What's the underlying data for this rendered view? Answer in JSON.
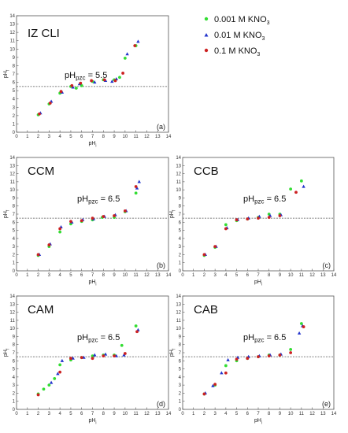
{
  "figure": {
    "legend": [
      {
        "label": "0.001 M KNO",
        "subscript": "3",
        "color": "#33dd33",
        "marker": "circle"
      },
      {
        "label": "0.01 M KNO",
        "subscript": "3",
        "color": "#2233cc",
        "marker": "triangle"
      },
      {
        "label": "0.1 M KNO",
        "subscript": "3",
        "color": "#cc2222",
        "marker": "circle"
      }
    ]
  },
  "chart_data": [
    {
      "type": "scatter",
      "title": "IZ CLI",
      "panel_label": "(a)",
      "xlabel": "pHi",
      "ylabel": "pHf",
      "pzc_label": "pHpzc = 5.5",
      "pzc": 5.5,
      "xlim": [
        0,
        14
      ],
      "ylim": [
        0,
        14
      ],
      "xticks": [
        0,
        1,
        2,
        3,
        4,
        5,
        6,
        7,
        8,
        9,
        10,
        11,
        12,
        13,
        14
      ],
      "yticks": [
        0,
        1,
        2,
        3,
        4,
        5,
        6,
        7,
        8,
        9,
        10,
        11,
        12,
        13,
        14
      ],
      "series": [
        {
          "name": "0.001 M KNO3",
          "points": [
            [
              2.0,
              2.1
            ],
            [
              3.0,
              3.4
            ],
            [
              4.0,
              4.7
            ],
            [
              5.0,
              5.5
            ],
            [
              5.5,
              5.3
            ],
            [
              6.0,
              5.6
            ],
            [
              7.0,
              6.1
            ],
            [
              8.0,
              6.3
            ],
            [
              9.0,
              6.3
            ],
            [
              9.5,
              6.6
            ],
            [
              10.0,
              8.9
            ],
            [
              11.0,
              10.4
            ]
          ]
        },
        {
          "name": "0.01 M KNO3",
          "points": [
            [
              2.2,
              2.3
            ],
            [
              3.2,
              3.7
            ],
            [
              4.2,
              4.8
            ],
            [
              5.2,
              5.4
            ],
            [
              5.8,
              5.8
            ],
            [
              7.2,
              6.0
            ],
            [
              8.2,
              6.2
            ],
            [
              8.8,
              6.1
            ],
            [
              9.2,
              6.4
            ],
            [
              10.2,
              9.4
            ],
            [
              11.2,
              10.9
            ]
          ]
        },
        {
          "name": "0.1 M KNO3",
          "points": [
            [
              2.1,
              2.2
            ],
            [
              3.1,
              3.5
            ],
            [
              4.1,
              4.9
            ],
            [
              5.1,
              5.6
            ],
            [
              5.9,
              5.9
            ],
            [
              6.9,
              6.2
            ],
            [
              8.1,
              6.3
            ],
            [
              9.1,
              6.2
            ],
            [
              9.8,
              7.1
            ],
            [
              10.9,
              10.4
            ]
          ]
        }
      ]
    },
    {
      "type": "scatter",
      "title": "CCM",
      "panel_label": "(b)",
      "xlabel": "pHi",
      "ylabel": "pHf",
      "pzc_label": "pHpzc = 6.5",
      "pzc": 6.5,
      "xlim": [
        0,
        14
      ],
      "ylim": [
        0,
        14
      ],
      "xticks": [
        0,
        1,
        2,
        3,
        4,
        5,
        6,
        7,
        8,
        9,
        10,
        11,
        12,
        13,
        14
      ],
      "yticks": [
        0,
        1,
        2,
        3,
        4,
        5,
        6,
        7,
        8,
        9,
        10,
        11,
        12,
        13,
        14
      ],
      "series": [
        {
          "name": "0.001 M KNO3",
          "points": [
            [
              2.0,
              1.9
            ],
            [
              3.0,
              3.0
            ],
            [
              4.0,
              4.8
            ],
            [
              5.0,
              5.8
            ],
            [
              6.0,
              6.1
            ],
            [
              7.0,
              6.3
            ],
            [
              7.9,
              6.6
            ],
            [
              9.0,
              6.6
            ],
            [
              10.0,
              7.3
            ],
            [
              11.0,
              9.6
            ]
          ]
        },
        {
          "name": "0.01 M KNO3",
          "points": [
            [
              2.1,
              2.0
            ],
            [
              3.1,
              3.3
            ],
            [
              4.1,
              5.4
            ],
            [
              5.1,
              6.0
            ],
            [
              6.1,
              6.3
            ],
            [
              7.1,
              6.4
            ],
            [
              8.1,
              6.7
            ],
            [
              9.1,
              6.9
            ],
            [
              10.1,
              7.4
            ],
            [
              11.1,
              10.2
            ],
            [
              11.3,
              11.0
            ]
          ]
        },
        {
          "name": "0.1 M KNO3",
          "points": [
            [
              2.0,
              2.0
            ],
            [
              3.0,
              3.2
            ],
            [
              4.0,
              5.2
            ],
            [
              5.0,
              6.1
            ],
            [
              6.0,
              6.2
            ],
            [
              7.0,
              6.5
            ],
            [
              8.0,
              6.7
            ],
            [
              9.0,
              6.8
            ],
            [
              10.0,
              7.4
            ],
            [
              11.0,
              10.4
            ]
          ]
        }
      ]
    },
    {
      "type": "scatter",
      "title": "CCB",
      "panel_label": "(c)",
      "xlabel": "pHi",
      "ylabel": "pHf",
      "pzc_label": "pHpzc = 6.5",
      "pzc": 6.5,
      "xlim": [
        0,
        14
      ],
      "ylim": [
        0,
        14
      ],
      "xticks": [
        0,
        1,
        2,
        3,
        4,
        5,
        6,
        7,
        8,
        9,
        10,
        11,
        12,
        13,
        14
      ],
      "yticks": [
        0,
        1,
        2,
        3,
        4,
        5,
        6,
        7,
        8,
        9,
        10,
        11,
        12,
        13,
        14
      ],
      "series": [
        {
          "name": "0.001 M KNO3",
          "points": [
            [
              2.0,
              1.9
            ],
            [
              3.0,
              2.9
            ],
            [
              4.0,
              5.7
            ],
            [
              5.0,
              6.2
            ],
            [
              6.0,
              6.4
            ],
            [
              7.0,
              6.6
            ],
            [
              8.0,
              7.0
            ],
            [
              9.0,
              7.0
            ],
            [
              10.0,
              10.1
            ],
            [
              11.0,
              11.1
            ]
          ]
        },
        {
          "name": "0.01 M KNO3",
          "points": [
            [
              2.1,
              2.0
            ],
            [
              3.1,
              3.0
            ],
            [
              4.1,
              5.3
            ],
            [
              5.1,
              6.3
            ],
            [
              6.1,
              6.5
            ],
            [
              7.1,
              6.7
            ],
            [
              8.1,
              6.8
            ],
            [
              9.1,
              6.9
            ],
            [
              11.2,
              10.4
            ]
          ]
        },
        {
          "name": "0.1 M KNO3",
          "points": [
            [
              2.0,
              2.0
            ],
            [
              3.0,
              3.0
            ],
            [
              4.0,
              5.2
            ],
            [
              5.0,
              6.3
            ],
            [
              6.0,
              6.4
            ],
            [
              7.0,
              6.5
            ],
            [
              8.0,
              6.6
            ],
            [
              9.0,
              6.8
            ],
            [
              10.5,
              9.7
            ]
          ]
        }
      ]
    },
    {
      "type": "scatter",
      "title": "CAM",
      "panel_label": "(d)",
      "xlabel": "pHi",
      "ylabel": "pHf",
      "pzc_label": "pHpzc = 6.5",
      "pzc": 6.5,
      "xlim": [
        0,
        14
      ],
      "ylim": [
        0,
        14
      ],
      "xticks": [
        0,
        1,
        2,
        3,
        4,
        5,
        6,
        7,
        8,
        9,
        10,
        11,
        12,
        13,
        14
      ],
      "yticks": [
        0,
        1,
        2,
        3,
        4,
        5,
        6,
        7,
        8,
        9,
        10,
        11,
        12,
        13,
        14
      ],
      "series": [
        {
          "name": "0.001 M KNO3",
          "points": [
            [
              2.0,
              1.9
            ],
            [
              2.5,
              2.5
            ],
            [
              3.0,
              3.0
            ],
            [
              3.5,
              3.8
            ],
            [
              4.0,
              5.5
            ],
            [
              5.0,
              6.1
            ],
            [
              6.0,
              6.4
            ],
            [
              7.0,
              6.6
            ],
            [
              8.0,
              6.7
            ],
            [
              9.0,
              6.7
            ],
            [
              9.7,
              7.9
            ],
            [
              11.0,
              10.3
            ]
          ]
        },
        {
          "name": "0.01 M KNO3",
          "points": [
            [
              3.2,
              3.3
            ],
            [
              3.8,
              4.4
            ],
            [
              4.2,
              6.0
            ],
            [
              5.2,
              6.3
            ],
            [
              6.2,
              6.4
            ],
            [
              7.2,
              6.7
            ],
            [
              8.2,
              6.8
            ],
            [
              9.2,
              6.6
            ],
            [
              9.9,
              6.7
            ],
            [
              11.2,
              9.8
            ]
          ]
        },
        {
          "name": "0.1 M KNO3",
          "points": [
            [
              2.0,
              1.8
            ],
            [
              4.0,
              4.6
            ],
            [
              5.0,
              6.3
            ],
            [
              6.0,
              6.4
            ],
            [
              7.0,
              6.3
            ],
            [
              8.0,
              6.6
            ],
            [
              9.0,
              6.6
            ],
            [
              10.0,
              6.9
            ],
            [
              11.1,
              9.6
            ]
          ]
        }
      ]
    },
    {
      "type": "scatter",
      "title": "CAB",
      "panel_label": "(e)",
      "xlabel": "pHi",
      "ylabel": "pHf",
      "pzc_label": "pHpzc = 6.5",
      "pzc": 6.5,
      "xlim": [
        0,
        14
      ],
      "ylim": [
        0,
        14
      ],
      "xticks": [
        0,
        1,
        2,
        3,
        4,
        5,
        6,
        7,
        8,
        9,
        10,
        11,
        12,
        13,
        14
      ],
      "yticks": [
        0,
        1,
        2,
        3,
        4,
        5,
        6,
        7,
        8,
        9,
        10,
        11,
        12,
        13,
        14
      ],
      "series": [
        {
          "name": "0.001 M KNO3",
          "points": [
            [
              2.0,
              1.9
            ],
            [
              3.0,
              3.0
            ],
            [
              4.0,
              5.4
            ],
            [
              5.0,
              6.0
            ],
            [
              6.0,
              6.3
            ],
            [
              7.0,
              6.5
            ],
            [
              8.0,
              6.7
            ],
            [
              9.0,
              6.7
            ],
            [
              10.0,
              7.4
            ],
            [
              11.0,
              10.6
            ]
          ]
        },
        {
          "name": "0.01 M KNO3",
          "points": [
            [
              2.1,
              2.0
            ],
            [
              2.8,
              2.9
            ],
            [
              3.6,
              4.5
            ],
            [
              4.2,
              6.1
            ],
            [
              5.1,
              6.4
            ],
            [
              6.1,
              6.5
            ],
            [
              7.1,
              6.6
            ],
            [
              8.1,
              6.7
            ],
            [
              9.1,
              6.8
            ],
            [
              10.8,
              9.4
            ],
            [
              11.1,
              10.3
            ]
          ]
        },
        {
          "name": "0.1 M KNO3",
          "points": [
            [
              2.0,
              1.9
            ],
            [
              3.0,
              3.1
            ],
            [
              4.0,
              4.5
            ],
            [
              5.0,
              6.2
            ],
            [
              6.0,
              6.3
            ],
            [
              7.0,
              6.5
            ],
            [
              8.0,
              6.6
            ],
            [
              9.0,
              6.7
            ],
            [
              10.0,
              7.0
            ],
            [
              11.2,
              10.2
            ]
          ]
        }
      ]
    }
  ]
}
